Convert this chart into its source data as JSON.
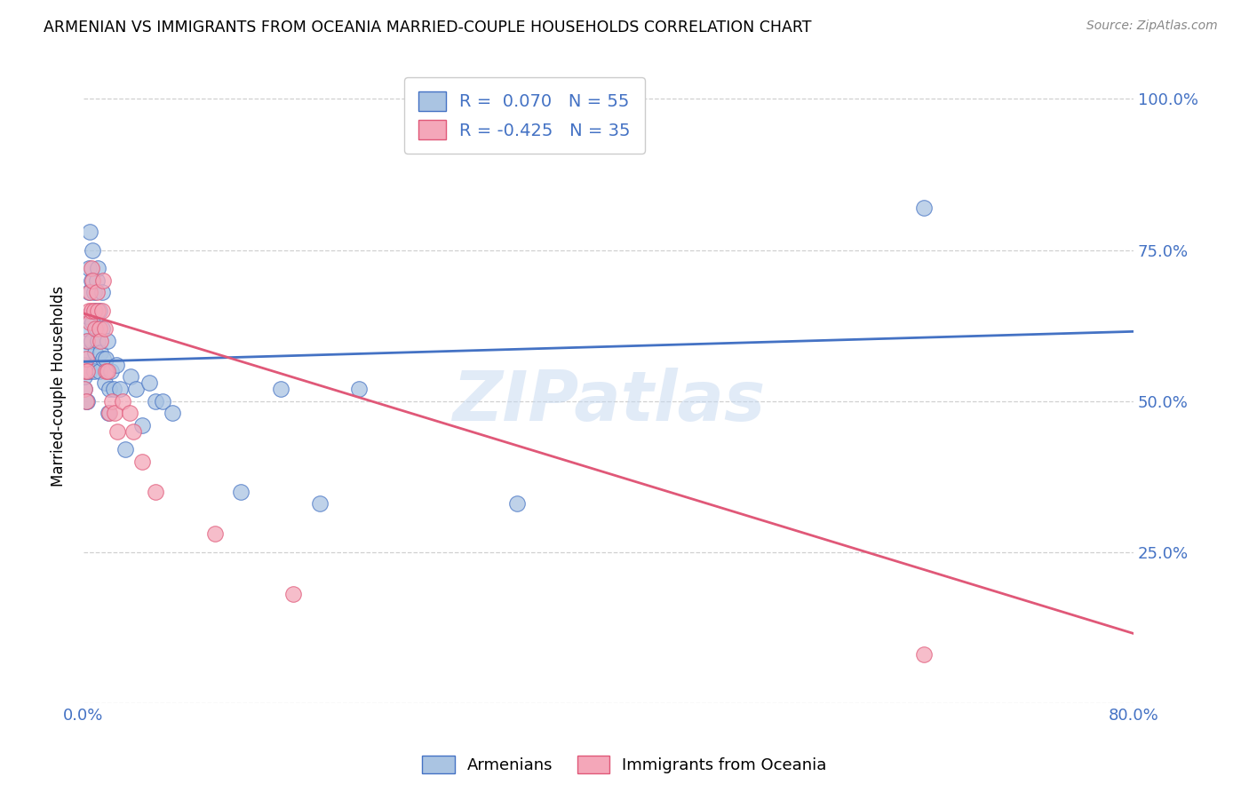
{
  "title": "ARMENIAN VS IMMIGRANTS FROM OCEANIA MARRIED-COUPLE HOUSEHOLDS CORRELATION CHART",
  "source": "Source: ZipAtlas.com",
  "legend_armenians": "Armenians",
  "legend_oceania": "Immigrants from Oceania",
  "r_armenians": 0.07,
  "n_armenians": 55,
  "r_oceania": -0.425,
  "n_oceania": 35,
  "blue_color": "#aac4e2",
  "blue_line_color": "#4472c4",
  "pink_color": "#f4a7b9",
  "pink_line_color": "#e05878",
  "watermark_zip": "ZIP",
  "watermark_atlas": "atlas",
  "blue_line_y0": 0.565,
  "blue_line_y1": 0.615,
  "pink_line_y0": 0.645,
  "pink_line_y1": 0.115,
  "armenians_x": [
    0.001,
    0.001,
    0.001,
    0.002,
    0.002,
    0.002,
    0.003,
    0.003,
    0.003,
    0.003,
    0.004,
    0.004,
    0.005,
    0.005,
    0.006,
    0.006,
    0.007,
    0.007,
    0.008,
    0.008,
    0.009,
    0.009,
    0.01,
    0.01,
    0.011,
    0.011,
    0.012,
    0.012,
    0.013,
    0.014,
    0.014,
    0.015,
    0.016,
    0.017,
    0.018,
    0.019,
    0.02,
    0.021,
    0.023,
    0.025,
    0.028,
    0.032,
    0.036,
    0.04,
    0.045,
    0.05,
    0.055,
    0.06,
    0.068,
    0.12,
    0.15,
    0.18,
    0.21,
    0.33,
    0.64
  ],
  "armenians_y": [
    0.52,
    0.54,
    0.56,
    0.58,
    0.5,
    0.6,
    0.55,
    0.62,
    0.5,
    0.64,
    0.68,
    0.72,
    0.55,
    0.78,
    0.6,
    0.7,
    0.63,
    0.75,
    0.55,
    0.68,
    0.58,
    0.65,
    0.62,
    0.7,
    0.6,
    0.72,
    0.55,
    0.65,
    0.58,
    0.68,
    0.62,
    0.57,
    0.53,
    0.57,
    0.6,
    0.48,
    0.52,
    0.55,
    0.52,
    0.56,
    0.52,
    0.42,
    0.54,
    0.52,
    0.46,
    0.53,
    0.5,
    0.5,
    0.48,
    0.35,
    0.52,
    0.33,
    0.52,
    0.33,
    0.82
  ],
  "oceania_x": [
    0.001,
    0.001,
    0.002,
    0.002,
    0.003,
    0.003,
    0.004,
    0.005,
    0.005,
    0.006,
    0.006,
    0.007,
    0.008,
    0.009,
    0.01,
    0.011,
    0.012,
    0.013,
    0.014,
    0.015,
    0.016,
    0.017,
    0.018,
    0.02,
    0.022,
    0.024,
    0.026,
    0.03,
    0.035,
    0.038,
    0.045,
    0.055,
    0.1,
    0.16,
    0.64
  ],
  "oceania_y": [
    0.52,
    0.55,
    0.57,
    0.5,
    0.6,
    0.55,
    0.65,
    0.68,
    0.63,
    0.72,
    0.65,
    0.7,
    0.65,
    0.62,
    0.68,
    0.65,
    0.62,
    0.6,
    0.65,
    0.7,
    0.62,
    0.55,
    0.55,
    0.48,
    0.5,
    0.48,
    0.45,
    0.5,
    0.48,
    0.45,
    0.4,
    0.35,
    0.28,
    0.18,
    0.08
  ],
  "xlim": [
    0.0,
    0.8
  ],
  "ylim": [
    0.0,
    1.05
  ],
  "background_color": "#ffffff",
  "grid_color": "#d0d0d0",
  "right_yticks": [
    "100.0%",
    "75.0%",
    "50.0%",
    "25.0%"
  ],
  "right_ytick_vals": [
    1.0,
    0.75,
    0.5,
    0.25
  ]
}
